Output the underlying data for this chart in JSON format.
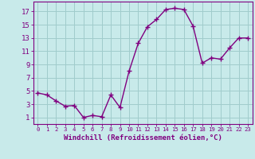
{
  "x": [
    0,
    1,
    2,
    3,
    4,
    5,
    6,
    7,
    8,
    9,
    10,
    11,
    12,
    13,
    14,
    15,
    16,
    17,
    18,
    19,
    20,
    21,
    22,
    23
  ],
  "y": [
    4.7,
    4.4,
    3.5,
    2.7,
    2.8,
    1.0,
    1.3,
    1.1,
    4.4,
    2.5,
    8.0,
    12.2,
    14.7,
    15.8,
    17.3,
    17.5,
    17.3,
    14.8,
    9.2,
    10.0,
    9.8,
    11.5,
    13.0,
    13.0
  ],
  "line_color": "#800080",
  "marker": "+",
  "marker_size": 4,
  "marker_edge_width": 1.0,
  "background_color": "#c8eaea",
  "grid_color": "#a0cccc",
  "xlabel": "Windchill (Refroidissement éolien,°C)",
  "xlabel_color": "#800080",
  "ylabel_ticks": [
    1,
    3,
    5,
    7,
    9,
    11,
    13,
    15,
    17
  ],
  "xtick_labels": [
    "0",
    "1",
    "2",
    "3",
    "4",
    "5",
    "6",
    "7",
    "8",
    "9",
    "10",
    "11",
    "12",
    "13",
    "14",
    "15",
    "16",
    "17",
    "18",
    "19",
    "20",
    "21",
    "22",
    "23"
  ],
  "ylim": [
    0,
    18.5
  ],
  "xlim": [
    -0.5,
    23.5
  ],
  "tick_color": "#800080",
  "spine_color": "#800080",
  "line_width": 1.0,
  "ytick_fontsize": 6.5,
  "xtick_fontsize": 5.2,
  "xlabel_fontsize": 6.5
}
